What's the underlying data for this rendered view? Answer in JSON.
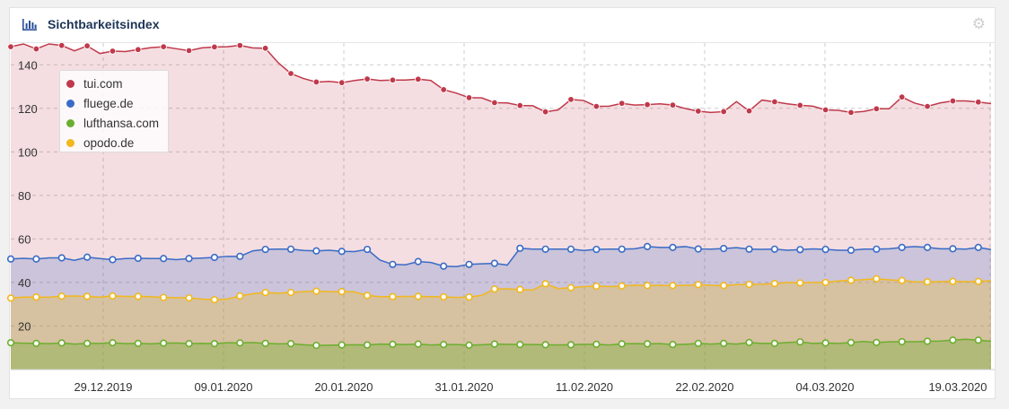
{
  "header": {
    "title": "Sichtbarkeitsindex",
    "chart_icon": "bar-chart-icon",
    "settings_icon": "gear-icon"
  },
  "colors": {
    "tui.com": "#c0394b",
    "fluege.de": "#3a6bc6",
    "lufthansa.com": "#6cae2f",
    "opodo.de": "#f2b81c"
  },
  "chart_data": {
    "type": "area",
    "title": "Sichtbarkeitsindex",
    "xlabel": "",
    "ylabel": "",
    "ylim": [
      0,
      150
    ],
    "yticks": [
      20,
      40,
      60,
      80,
      100,
      120,
      140
    ],
    "xtick_labels": [
      "29.12.2019",
      "09.01.2020",
      "20.01.2020",
      "31.01.2020",
      "11.02.2020",
      "22.02.2020",
      "04.03.2020",
      "19.03.2020"
    ],
    "legend_position": "top-left",
    "grid": true,
    "series": [
      {
        "name": "tui.com",
        "values": [
          148.3,
          149.6,
          147.3,
          149.6,
          148.9,
          146.4,
          148.7,
          145.2,
          146.3,
          146.1,
          147.0,
          147.9,
          148.3,
          147.4,
          146.5,
          147.8,
          148.2,
          148.3,
          148.9,
          147.8,
          147.6,
          141.0,
          136.0,
          133.7,
          132.1,
          132.4,
          131.8,
          132.8,
          133.5,
          132.8,
          133.0,
          133.0,
          133.4,
          132.8,
          128.6,
          127.0,
          124.9,
          124.8,
          122.6,
          122.5,
          121.3,
          121.2,
          118.4,
          119.3,
          124.1,
          123.6,
          120.9,
          121.0,
          122.3,
          121.5,
          121.7,
          122.1,
          121.5,
          119.9,
          118.7,
          118.1,
          118.5,
          123.1,
          118.8,
          123.8,
          123.0,
          122.1,
          121.4,
          121.0,
          119.3,
          119.1,
          118.1,
          118.6,
          119.8,
          119.8,
          125.2,
          122.4,
          120.9,
          122.5,
          123.4,
          123.4,
          122.9,
          122.2
        ]
      },
      {
        "name": "fluege.de",
        "values": [
          50.8,
          51.1,
          50.8,
          51.3,
          51.3,
          50.2,
          51.6,
          51.0,
          50.5,
          51.0,
          51.1,
          51.0,
          51.0,
          50.5,
          51.0,
          51.2,
          51.5,
          52.0,
          52.0,
          54.5,
          55.2,
          55.3,
          55.3,
          54.7,
          54.5,
          54.8,
          54.3,
          54.2,
          55.2,
          50.3,
          48.3,
          48.1,
          49.6,
          49.2,
          47.5,
          47.3,
          48.3,
          48.6,
          48.8,
          48.0,
          55.7,
          55.3,
          55.3,
          55.3,
          55.3,
          54.7,
          55.2,
          55.3,
          55.3,
          55.5,
          56.5,
          56.1,
          56.1,
          56.5,
          55.4,
          55.3,
          55.6,
          56.0,
          55.3,
          55.2,
          55.3,
          54.8,
          55.1,
          55.4,
          55.2,
          54.8,
          54.8,
          55.3,
          55.3,
          55.5,
          56.1,
          56.5,
          56.1,
          55.5,
          55.5,
          55.3,
          56.1,
          55.1
        ]
      },
      {
        "name": "lufthansa.com",
        "values": [
          12.3,
          12.1,
          12.0,
          11.9,
          12.2,
          11.7,
          12.0,
          12.0,
          12.3,
          11.9,
          12.0,
          11.8,
          12.1,
          12.2,
          11.9,
          12.0,
          11.9,
          12.3,
          12.2,
          12.4,
          12.0,
          11.8,
          11.9,
          11.4,
          11.1,
          11.2,
          11.3,
          11.4,
          11.3,
          11.7,
          11.6,
          11.5,
          11.7,
          11.3,
          11.5,
          11.5,
          11.2,
          11.4,
          11.7,
          11.6,
          11.5,
          11.5,
          11.4,
          11.3,
          11.4,
          11.6,
          11.6,
          11.3,
          11.8,
          11.9,
          11.8,
          11.9,
          11.5,
          11.6,
          12.0,
          11.7,
          12.0,
          11.7,
          12.4,
          12.0,
          12.0,
          12.4,
          12.7,
          12.0,
          12.2,
          12.0,
          12.4,
          12.9,
          12.4,
          12.7,
          12.8,
          12.8,
          13.0,
          13.1,
          13.5,
          13.9,
          13.5,
          13.0
        ]
      },
      {
        "name": "opodo.de",
        "values": [
          32.8,
          33.3,
          33.3,
          33.2,
          33.7,
          33.8,
          33.6,
          33.3,
          33.8,
          33.6,
          33.6,
          33.5,
          33.1,
          33.0,
          32.9,
          32.4,
          32.1,
          32.4,
          33.8,
          34.8,
          35.4,
          35.1,
          35.4,
          35.8,
          36.0,
          35.8,
          35.8,
          35.7,
          34.0,
          33.5,
          33.5,
          33.6,
          33.6,
          33.5,
          33.4,
          33.1,
          33.3,
          34.1,
          37.0,
          37.1,
          36.8,
          36.5,
          39.4,
          37.2,
          37.6,
          38.1,
          38.3,
          38.1,
          38.4,
          38.8,
          38.6,
          38.7,
          38.6,
          38.7,
          39.0,
          38.7,
          38.6,
          39.0,
          39.1,
          39.2,
          39.5,
          40.0,
          39.8,
          40.0,
          40.0,
          40.7,
          41.0,
          41.3,
          41.7,
          41.2,
          40.9,
          40.3,
          40.3,
          40.4,
          40.5,
          40.4,
          40.5,
          40.8
        ]
      }
    ]
  }
}
